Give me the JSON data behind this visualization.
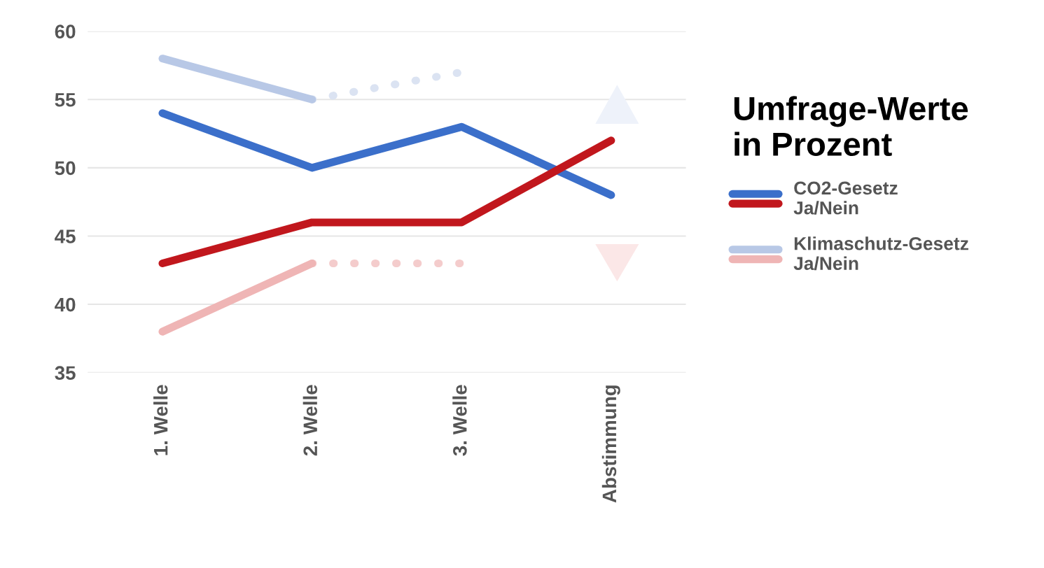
{
  "chart_data": {
    "type": "line",
    "categories": [
      "1. Welle",
      "2. Welle",
      "3. Welle",
      "Abstimmung"
    ],
    "series": [
      {
        "name": "CO2-Gesetz Ja/Nein",
        "color": "#3b6fca",
        "values": [
          54,
          50,
          53,
          48
        ]
      },
      {
        "color": "#c1171d",
        "values": [
          43,
          46,
          46,
          52
        ]
      },
      {
        "name": "Klimaschutz-Gesetz Ja/Nein",
        "color": "#b8c8e6",
        "values": [
          58,
          55,
          null,
          null
        ]
      },
      {
        "color": "#efb5b5",
        "values": [
          38,
          43,
          null,
          null
        ]
      },
      {
        "color": "#dbe3f2",
        "values": [
          null,
          55,
          57,
          null
        ],
        "line_style": "dotted"
      },
      {
        "color": "#f4cccc",
        "values": [
          null,
          43,
          43,
          null
        ],
        "line_style": "dotted"
      }
    ],
    "ylim": [
      35,
      60
    ],
    "yticks": [
      35,
      40,
      45,
      50,
      55,
      60
    ],
    "grid": "y",
    "legend": "right",
    "legend_title": "Umfrage-Werte in Prozent",
    "marker": "none",
    "line_style": "solid"
  }
}
